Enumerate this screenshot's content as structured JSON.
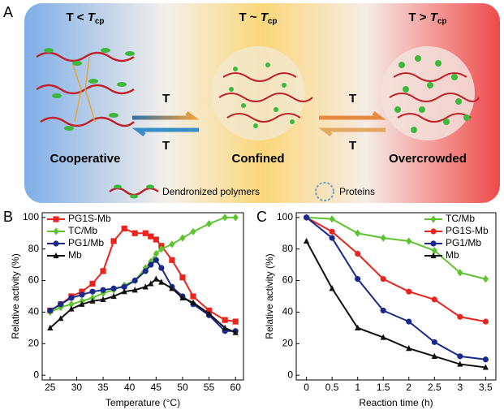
{
  "panel_a": {
    "panel": "A",
    "states": [
      {
        "prefix": "T < ",
        "symbol": "T",
        "subscript": "cp",
        "label": "Cooperative"
      },
      {
        "prefix": "T ~ ",
        "symbol": "T",
        "subscript": "cp",
        "label": "Confined"
      },
      {
        "prefix": "T > ",
        "symbol": "T",
        "subscript": "cp",
        "label": "Overcrowded"
      }
    ],
    "arrow_labels": [
      "T",
      "T",
      "T",
      "T"
    ],
    "legend": [
      "Dendronized polymers",
      "Proteins"
    ]
  },
  "chart_data": [
    {
      "type": "line",
      "panel": "B",
      "xlabel": "Temperature (°C)",
      "ylabel": "Relative activity (%)",
      "x": [
        25,
        27,
        29,
        31,
        33,
        35,
        37,
        39,
        41,
        43,
        44,
        45,
        46,
        48,
        50,
        52,
        55,
        58,
        60
      ],
      "xlim": [
        23.5,
        61.5
      ],
      "xticks": [
        25,
        30,
        35,
        40,
        45,
        50,
        55,
        60
      ],
      "ylim": [
        -3,
        103
      ],
      "yticks": [
        0,
        20,
        40,
        60,
        80,
        100
      ],
      "legend": "upper left",
      "series": [
        {
          "name": "PG1S-Mb",
          "color": "#e8251f",
          "marker": "square",
          "values": [
            41,
            45,
            50,
            53,
            58,
            66,
            85,
            93,
            90,
            90,
            88,
            86,
            82,
            73,
            62,
            50,
            41,
            35,
            34
          ]
        },
        {
          "name": "TC/Mb",
          "color": "#5ec32f",
          "marker": "diamond",
          "values": [
            40,
            43,
            45,
            47,
            49,
            52,
            54,
            57,
            60,
            68,
            72,
            77,
            80,
            83,
            87,
            91,
            96,
            100,
            100
          ]
        },
        {
          "name": "PG1/Mb",
          "color": "#1a2a8a",
          "marker": "circle",
          "values": [
            41,
            45,
            49,
            51,
            53,
            54,
            55,
            56,
            60,
            66,
            70,
            73,
            68,
            56,
            50,
            45,
            38,
            28,
            28
          ]
        },
        {
          "name": "Mb",
          "color": "#111111",
          "marker": "triangle",
          "values": [
            30,
            36,
            42,
            45,
            47,
            48,
            50,
            53,
            54,
            56,
            58,
            61,
            59,
            55,
            49,
            46,
            39,
            30,
            27
          ]
        }
      ]
    },
    {
      "type": "line",
      "panel": "C",
      "xlabel": "Reaction time (h)",
      "ylabel": "Relative activity (%)",
      "x": [
        0,
        0.5,
        1,
        1.5,
        2,
        2.5,
        3,
        3.5
      ],
      "xlim": [
        -0.2,
        3.7
      ],
      "xticks": [
        0,
        0.5,
        1,
        1.5,
        2,
        2.5,
        3,
        3.5
      ],
      "ylim": [
        -3,
        103
      ],
      "yticks": [
        0,
        20,
        40,
        60,
        80,
        100
      ],
      "legend": "upper right",
      "series": [
        {
          "name": "TC/Mb",
          "color": "#5ec32f",
          "marker": "diamond",
          "values": [
            100,
            99,
            90,
            87,
            85,
            79,
            65,
            61
          ]
        },
        {
          "name": "PG1S-Mb",
          "color": "#e8251f",
          "marker": "circle",
          "values": [
            100,
            91,
            77,
            61,
            53,
            48,
            37,
            34
          ]
        },
        {
          "name": "PG1/Mb",
          "color": "#1a2a8a",
          "marker": "circle",
          "values": [
            100,
            87,
            61,
            41,
            34,
            21,
            12,
            10
          ]
        },
        {
          "name": "Mb",
          "color": "#111111",
          "marker": "triangle",
          "values": [
            85,
            55,
            30,
            24,
            17,
            12,
            7,
            5
          ]
        }
      ]
    }
  ]
}
